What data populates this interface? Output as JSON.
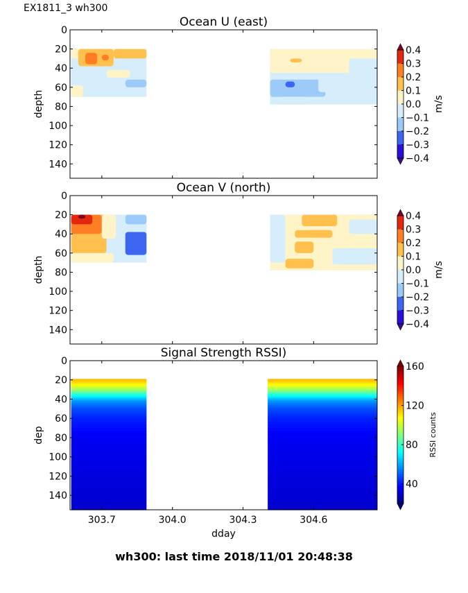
{
  "figure": {
    "suptitle": "EX1811_3 wh300",
    "bottom_title": "wh300: last time 2018/11/01 20:48:38"
  },
  "chart_data": [
    {
      "type": "heatmap",
      "id": "ocean-u",
      "title": "Ocean U (east)",
      "xlabel": "",
      "ylabel": "depth",
      "xlim": [
        303.565,
        304.87
      ],
      "ylim": [
        155,
        0
      ],
      "xticks": [
        303.7,
        304.0,
        304.3,
        304.6
      ],
      "xtick_labels_visible": false,
      "yticks": [
        0,
        20,
        40,
        60,
        80,
        100,
        120,
        140
      ],
      "data_segments": [
        {
          "dday_start": 303.57,
          "dday_end": 303.89,
          "depth_top": 20,
          "depth_bottom": 70
        },
        {
          "dday_start": 304.415,
          "dday_end": 304.87,
          "depth_top": 20,
          "depth_bottom": 78
        }
      ],
      "colorbar": {
        "label": "m/s",
        "ticks": [
          "0.4",
          "0.3",
          "0.2",
          "0.1",
          "0.0",
          "−0.1",
          "−0.2",
          "−0.3",
          "−0.4"
        ],
        "levels": [
          -0.4,
          -0.3,
          -0.2,
          -0.1,
          0.0,
          0.1,
          0.2,
          0.3,
          0.4
        ],
        "colors": [
          "#2a0fd8",
          "#3c66f2",
          "#9ccbfa",
          "#d6eefb",
          "#fff4c8",
          "#ffc04d",
          "#ff7e24",
          "#e3270f"
        ],
        "extend_low": "#3d0a91",
        "extend_high": "#7a0424"
      },
      "patches": [
        {
          "t0": 303.57,
          "t1": 303.89,
          "z0": 20,
          "z1": 30,
          "v": 0.05
        },
        {
          "t0": 303.6,
          "t1": 303.75,
          "z0": 20,
          "z1": 38,
          "v": 0.15
        },
        {
          "t0": 303.63,
          "t1": 303.68,
          "z0": 24,
          "z1": 36,
          "v": 0.25
        },
        {
          "t0": 303.7,
          "t1": 303.73,
          "z0": 26,
          "z1": 32,
          "v": 0.25
        },
        {
          "t0": 303.75,
          "t1": 303.89,
          "z0": 20,
          "z1": 30,
          "v": 0.15
        },
        {
          "t0": 303.57,
          "t1": 303.89,
          "z0": 38,
          "z1": 60,
          "v": -0.05
        },
        {
          "t0": 303.72,
          "t1": 303.82,
          "z0": 42,
          "z1": 50,
          "v": 0.05
        },
        {
          "t0": 303.8,
          "t1": 303.89,
          "z0": 52,
          "z1": 60,
          "v": -0.15
        },
        {
          "t0": 303.57,
          "t1": 303.62,
          "z0": 58,
          "z1": 70,
          "v": 0.05
        },
        {
          "t0": 303.62,
          "t1": 303.78,
          "z0": 60,
          "z1": 68,
          "v": -0.05
        },
        {
          "t0": 304.415,
          "t1": 304.87,
          "z0": 20,
          "z1": 45,
          "v": 0.05
        },
        {
          "t0": 304.5,
          "t1": 304.55,
          "z0": 30,
          "z1": 34,
          "v": 0.15
        },
        {
          "t0": 304.75,
          "t1": 304.87,
          "z0": 30,
          "z1": 48,
          "v": -0.05
        },
        {
          "t0": 304.415,
          "t1": 304.62,
          "z0": 45,
          "z1": 52,
          "v": -0.05
        },
        {
          "t0": 304.415,
          "t1": 304.65,
          "z0": 52,
          "z1": 70,
          "v": -0.15
        },
        {
          "t0": 304.48,
          "t1": 304.52,
          "z0": 54,
          "z1": 60,
          "v": -0.25
        },
        {
          "t0": 304.62,
          "t1": 304.87,
          "z0": 45,
          "z1": 65,
          "v": -0.05
        },
        {
          "t0": 304.45,
          "t1": 304.58,
          "z0": 70,
          "z1": 78,
          "v": -0.05
        }
      ]
    },
    {
      "type": "heatmap",
      "id": "ocean-v",
      "title": "Ocean V (north)",
      "xlabel": "",
      "ylabel": "depth",
      "xlim": [
        303.565,
        304.87
      ],
      "ylim": [
        155,
        0
      ],
      "xticks": [
        303.7,
        304.0,
        304.3,
        304.6
      ],
      "xtick_labels_visible": false,
      "yticks": [
        0,
        20,
        40,
        60,
        80,
        100,
        120,
        140
      ],
      "data_segments": [
        {
          "dday_start": 303.57,
          "dday_end": 303.89,
          "depth_top": 20,
          "depth_bottom": 70
        },
        {
          "dday_start": 304.415,
          "dday_end": 304.87,
          "depth_top": 20,
          "depth_bottom": 78
        }
      ],
      "colorbar": {
        "label": "m/s",
        "ticks": [
          "0.4",
          "0.3",
          "0.2",
          "0.1",
          "0.0",
          "−0.1",
          "−0.2",
          "−0.3",
          "−0.4"
        ],
        "levels": [
          -0.4,
          -0.3,
          -0.2,
          -0.1,
          0.0,
          0.1,
          0.2,
          0.3,
          0.4
        ],
        "colors": [
          "#2a0fd8",
          "#3c66f2",
          "#9ccbfa",
          "#d6eefb",
          "#fff4c8",
          "#ffc04d",
          "#ff7e24",
          "#e3270f"
        ],
        "extend_low": "#3d0a91",
        "extend_high": "#7a0424"
      },
      "patches": [
        {
          "t0": 303.57,
          "t1": 303.72,
          "z0": 20,
          "z1": 60,
          "v": 0.15
        },
        {
          "t0": 303.57,
          "t1": 303.7,
          "z0": 20,
          "z1": 40,
          "v": 0.25
        },
        {
          "t0": 303.57,
          "t1": 303.66,
          "z0": 20,
          "z1": 30,
          "v": 0.35
        },
        {
          "t0": 303.6,
          "t1": 303.63,
          "z0": 20,
          "z1": 24,
          "v": 0.45
        },
        {
          "t0": 303.7,
          "t1": 303.76,
          "z0": 20,
          "z1": 45,
          "v": 0.05
        },
        {
          "t0": 303.76,
          "t1": 303.89,
          "z0": 20,
          "z1": 40,
          "v": -0.05
        },
        {
          "t0": 303.8,
          "t1": 303.89,
          "z0": 20,
          "z1": 30,
          "v": -0.15
        },
        {
          "t0": 303.72,
          "t1": 303.8,
          "z0": 45,
          "z1": 65,
          "v": -0.05
        },
        {
          "t0": 303.8,
          "t1": 303.89,
          "z0": 38,
          "z1": 62,
          "v": -0.25
        },
        {
          "t0": 303.57,
          "t1": 303.75,
          "z0": 60,
          "z1": 70,
          "v": 0.05
        },
        {
          "t0": 304.415,
          "t1": 304.87,
          "z0": 20,
          "z1": 78,
          "v": 0.05
        },
        {
          "t0": 304.415,
          "t1": 304.48,
          "z0": 20,
          "z1": 70,
          "v": -0.05
        },
        {
          "t0": 304.55,
          "t1": 304.7,
          "z0": 20,
          "z1": 32,
          "v": 0.15
        },
        {
          "t0": 304.52,
          "t1": 304.68,
          "z0": 36,
          "z1": 44,
          "v": 0.15
        },
        {
          "t0": 304.52,
          "t1": 304.6,
          "z0": 48,
          "z1": 60,
          "v": 0.15
        },
        {
          "t0": 304.48,
          "t1": 304.6,
          "z0": 66,
          "z1": 76,
          "v": 0.15
        },
        {
          "t0": 304.75,
          "t1": 304.87,
          "z0": 25,
          "z1": 40,
          "v": -0.05
        },
        {
          "t0": 304.68,
          "t1": 304.87,
          "z0": 55,
          "z1": 72,
          "v": -0.05
        }
      ]
    },
    {
      "type": "heatmap",
      "id": "rssi",
      "title": "Signal Strength RSSI)",
      "xlabel": "dday",
      "ylabel": "dep",
      "xlim": [
        303.565,
        304.87
      ],
      "ylim": [
        155,
        0
      ],
      "xticks": [
        303.7,
        304.0,
        304.3,
        304.6
      ],
      "xtick_labels": [
        "303.7",
        "304.0",
        "304.3",
        "304.6"
      ],
      "xtick_labels_visible": true,
      "yticks": [
        0,
        20,
        40,
        60,
        80,
        100,
        120,
        140
      ],
      "data_segments": [
        {
          "dday_start": 303.57,
          "dday_end": 303.89,
          "depth_top": 19,
          "depth_bottom": 155
        },
        {
          "dday_start": 304.405,
          "dday_end": 304.87,
          "depth_top": 19,
          "depth_bottom": 155
        }
      ],
      "profile": [
        {
          "depth": 19,
          "rssi": 118
        },
        {
          "depth": 24,
          "rssi": 110
        },
        {
          "depth": 30,
          "rssi": 95
        },
        {
          "depth": 36,
          "rssi": 75
        },
        {
          "depth": 42,
          "rssi": 58
        },
        {
          "depth": 50,
          "rssi": 48
        },
        {
          "depth": 60,
          "rssi": 42
        },
        {
          "depth": 80,
          "rssi": 36
        },
        {
          "depth": 120,
          "rssi": 33
        },
        {
          "depth": 155,
          "rssi": 31
        }
      ],
      "colorbar": {
        "label": "RSSI counts",
        "ticks": [
          "160",
          "120",
          "80",
          "40"
        ],
        "tick_values": [
          160,
          120,
          80,
          40
        ],
        "range": [
          20,
          160
        ],
        "colormap": "jet"
      }
    }
  ]
}
